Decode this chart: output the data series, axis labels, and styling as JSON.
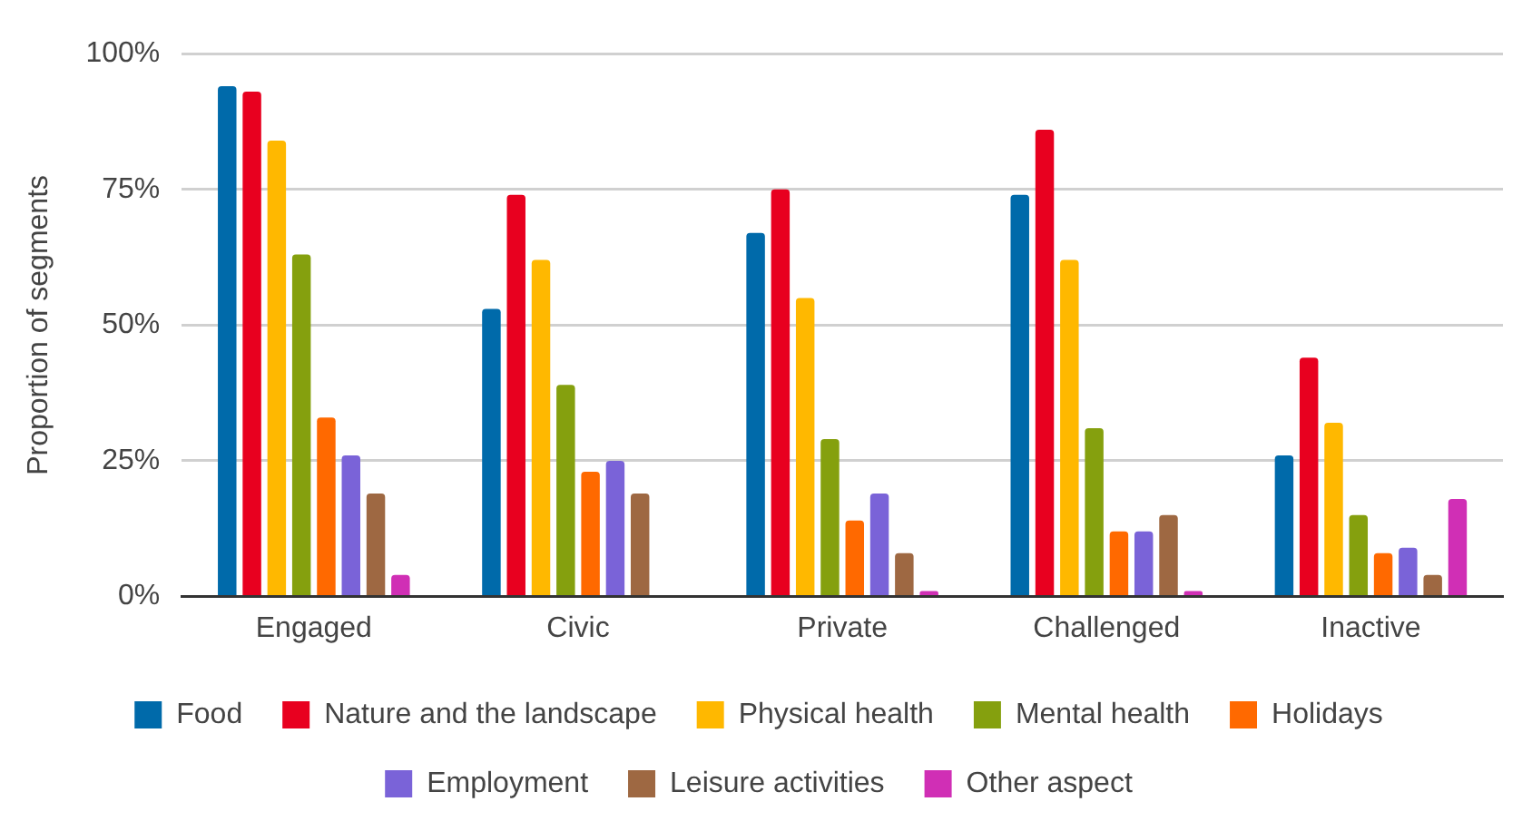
{
  "chart_data": {
    "type": "bar",
    "ylabel": "Proportion of segments",
    "categories": [
      "Engaged",
      "Civic",
      "Private",
      "Challenged",
      "Inactive"
    ],
    "series": [
      {
        "name": "Food",
        "color": "#006aaa",
        "values": [
          94,
          53,
          67,
          74,
          26
        ]
      },
      {
        "name": "Nature and the landscape",
        "color": "#e8001f",
        "values": [
          93,
          74,
          75,
          86,
          44
        ]
      },
      {
        "name": "Physical health",
        "color": "#ffb800",
        "values": [
          84,
          62,
          55,
          62,
          32
        ]
      },
      {
        "name": "Mental health",
        "color": "#85a00e",
        "values": [
          63,
          39,
          29,
          31,
          15
        ]
      },
      {
        "name": "Holidays",
        "color": "#ff6900",
        "values": [
          33,
          23,
          14,
          12,
          8
        ]
      },
      {
        "name": "Employment",
        "color": "#7a63d8",
        "values": [
          26,
          25,
          19,
          12,
          9
        ]
      },
      {
        "name": "Leisure activities",
        "color": "#9e6842",
        "values": [
          19,
          19,
          8,
          15,
          4
        ]
      },
      {
        "name": "Other aspect",
        "color": "#d02fb5",
        "values": [
          4,
          null,
          1,
          1,
          18
        ]
      }
    ],
    "ylim": [
      0,
      100
    ],
    "yticks": [
      {
        "value": 0,
        "label": "0%"
      },
      {
        "value": 25,
        "label": "25%"
      },
      {
        "value": 50,
        "label": "50%"
      },
      {
        "value": 75,
        "label": "75%"
      },
      {
        "value": 100,
        "label": "100%"
      }
    ],
    "grid": "y",
    "legend": "bottom"
  }
}
